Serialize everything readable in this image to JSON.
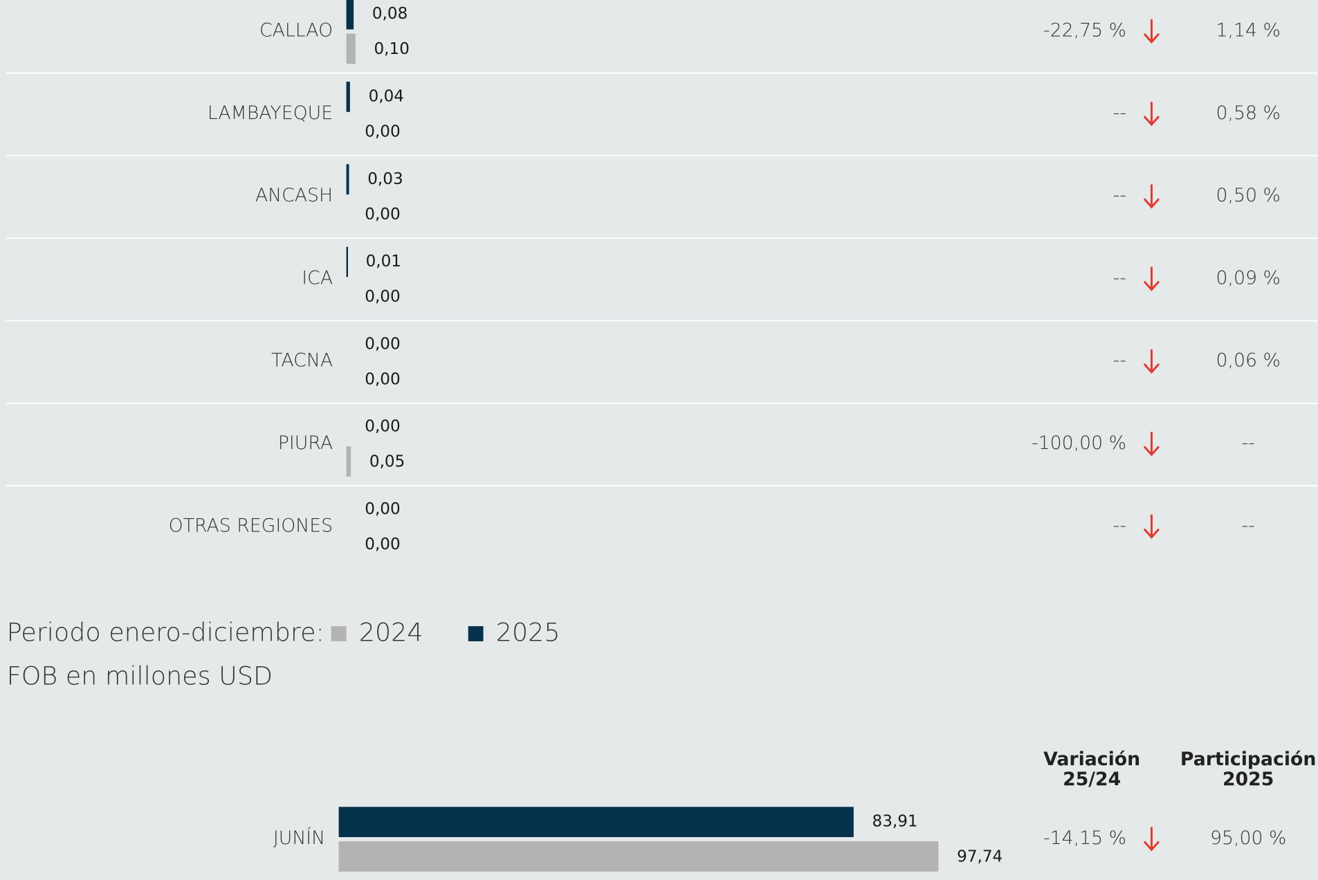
{
  "chart_data": [
    {
      "type": "bar",
      "categories": [
        "CALLAO",
        "LAMBAYEQUE",
        "ANCASH",
        "ICA",
        "TACNA",
        "PIURA",
        "OTRAS REGIONES"
      ],
      "xlim": [
        0,
        6.5
      ],
      "series": [
        {
          "color": "#b3b3b3",
          "values": [
            0.1,
            0.0,
            0.0,
            0.0,
            0.0,
            0.05,
            0.0
          ],
          "value_labels": [
            "0,10",
            "0,00",
            "0,00",
            "0,00",
            "0,00",
            "0,05",
            "0,00"
          ]
        },
        {
          "color": "#06314d",
          "values": [
            0.08,
            0.04,
            0.03,
            0.01,
            0.0,
            0.0,
            0.0
          ],
          "value_labels": [
            "0,08",
            "0,04",
            "0,03",
            "0,01",
            "0,00",
            "0,00",
            "0,00"
          ]
        }
      ],
      "variation": [
        "-22,75 %",
        "--",
        "--",
        "--",
        "--",
        "-100,00 %",
        "--"
      ],
      "participation": [
        "1,14 %",
        "0,58 %",
        "0,50 %",
        "0,09 %",
        "0,06 %",
        "--",
        "--"
      ]
    },
    {
      "type": "bar",
      "legend_title": "Periodo enero-diciembre:",
      "subtitle": "FOB en millones USD",
      "column_headers": [
        [
          "Variación",
          "25/24"
        ],
        [
          "Participación",
          "2025"
        ]
      ],
      "categories": [
        "JUNÍN"
      ],
      "xlim": [
        0,
        100
      ],
      "series": [
        {
          "name": "2024",
          "color": "#b3b3b3",
          "values": [
            97.74
          ],
          "value_labels": [
            "97,74"
          ]
        },
        {
          "name": "2025",
          "color": "#06314d",
          "values": [
            83.91
          ],
          "value_labels": [
            "83,91"
          ]
        }
      ],
      "variation": [
        "-14,15 %"
      ],
      "participation": [
        "95,00 %"
      ]
    }
  ]
}
